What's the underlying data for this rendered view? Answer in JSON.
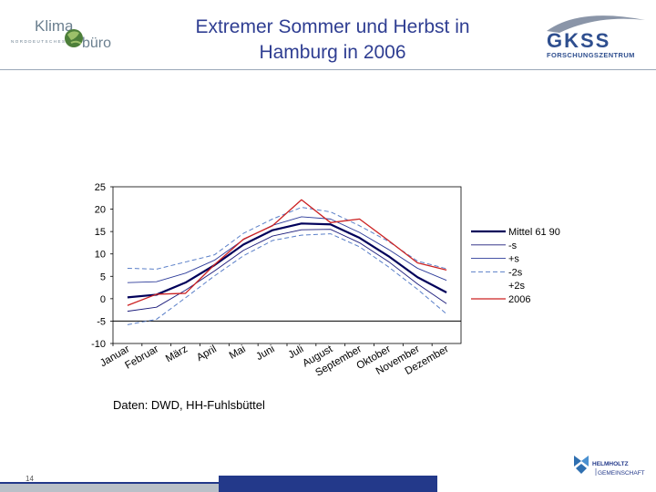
{
  "header": {
    "title_line1": "Extremer Sommer und Herbst in",
    "title_line2": "Hamburg in 2006"
  },
  "logos": {
    "left": {
      "word1": "Klima",
      "word2": "büro",
      "tagline": "NORDDEUTSCHES",
      "icon": "globe-icon"
    },
    "right": {
      "word": "GKSS",
      "subtitle": "FORSCHUNGSZENTRUM",
      "icon": "gkss-swoosh-icon"
    },
    "bottom": {
      "line1": "HELMHOLTZ",
      "line2": "GEMEINSCHAFT",
      "icon": "helmholtz-h-icon"
    }
  },
  "source_note": "Daten: DWD, HH-Fuhlsbüttel",
  "page_number": "14",
  "colors": {
    "title": "#2f3e92",
    "navy": "#00005a",
    "blue": "#2d3c9a",
    "dashed": "#5a7fc8",
    "red": "#cc2222",
    "footer_blue": "#23398a"
  },
  "chart_data": {
    "type": "line",
    "categories": [
      "Januar",
      "Februar",
      "März",
      "April",
      "Mai",
      "Juni",
      "Juli",
      "August",
      "September",
      "Oktober",
      "November",
      "Dezember"
    ],
    "ylim": [
      -10,
      25
    ],
    "yticks": [
      "25",
      "20",
      "15",
      "10",
      "5",
      "0",
      "-5",
      "-10"
    ],
    "legend_position": "right",
    "series": [
      {
        "name": "Mittel 61 90",
        "values": [
          0.3,
          0.9,
          3.6,
          7.5,
          12.1,
          15.3,
          16.8,
          16.6,
          13.6,
          9.5,
          4.8,
          1.4
        ],
        "color": "#00005a",
        "style": "solid-thick"
      },
      {
        "name": "-s",
        "values": [
          -2.8,
          -1.9,
          1.9,
          6.2,
          10.8,
          14.0,
          15.4,
          15.5,
          12.5,
          8.3,
          3.3,
          -1.1
        ],
        "color": "#1a1a7a",
        "style": "solid-thin"
      },
      {
        "name": "+s",
        "values": [
          3.6,
          3.8,
          5.7,
          8.6,
          13.2,
          16.4,
          18.3,
          17.8,
          14.8,
          11.0,
          6.8,
          4.1
        ],
        "color": "#2d3c9a",
        "style": "solid-thin"
      },
      {
        "name": "-2s",
        "values": [
          -5.8,
          -4.6,
          0.2,
          5.1,
          9.6,
          13.0,
          14.2,
          14.5,
          11.6,
          7.1,
          2.1,
          -3.4
        ],
        "color": "#5a7fc8",
        "style": "dashed"
      },
      {
        "name": "+2s",
        "values": [
          6.8,
          6.6,
          8.2,
          9.8,
          14.6,
          17.8,
          20.4,
          19.4,
          16.3,
          12.8,
          8.4,
          6.7
        ],
        "color": "#5a7fc8",
        "style": "dashed"
      },
      {
        "name": "2006",
        "values": [
          -1.5,
          1.0,
          1.2,
          7.6,
          13.3,
          16.3,
          22.1,
          17.0,
          17.8,
          13.0,
          8.0,
          6.4
        ],
        "color": "#cc2222",
        "style": "solid"
      }
    ]
  }
}
